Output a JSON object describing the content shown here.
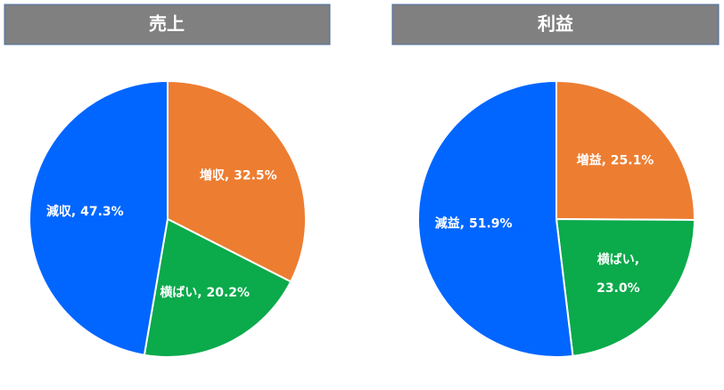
{
  "chart_data": [
    {
      "type": "pie",
      "title": "売上",
      "values": [
        32.5,
        20.2,
        47.3
      ],
      "value_labels": [
        "増収, 32.5%",
        "横ばい, 20.2%",
        "減収, 47.3%"
      ],
      "colors": [
        "#ED7D31",
        "#0BAA4B",
        "#0066FF"
      ]
    },
    {
      "type": "pie",
      "title": "利益",
      "values": [
        25.1,
        23.0,
        51.9
      ],
      "value_labels": [
        "増益, 25.1%",
        "横ばい,\n23.0%",
        "減益, 51.9%"
      ],
      "colors": [
        "#ED7D31",
        "#0BAA4B",
        "#0066FF"
      ]
    }
  ]
}
